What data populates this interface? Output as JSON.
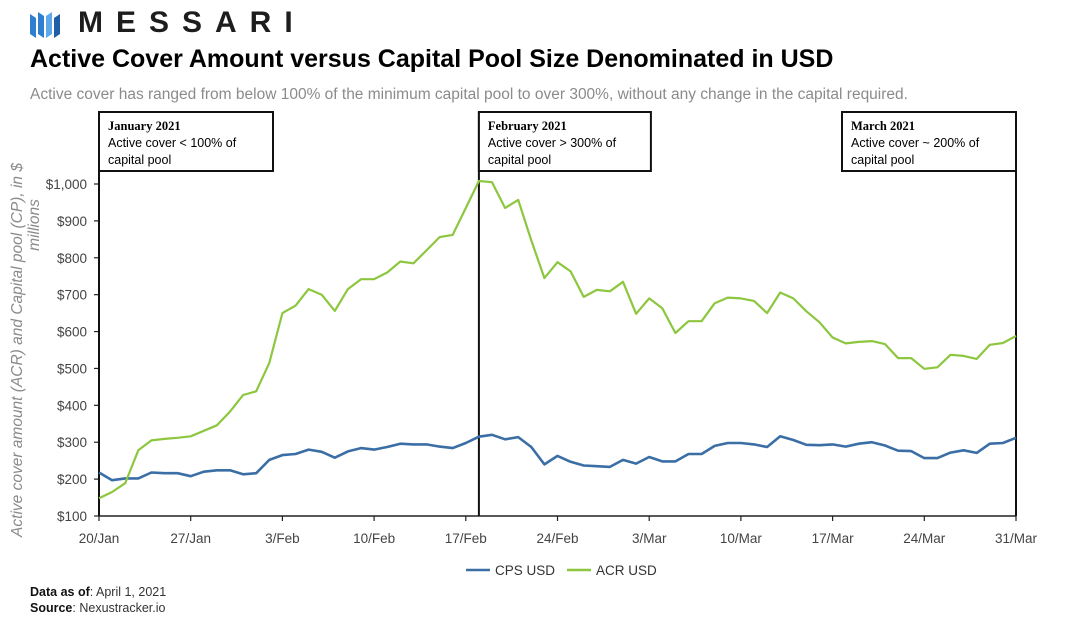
{
  "brand": {
    "name": "MESSARI"
  },
  "header": {
    "title": "Active Cover Amount versus Capital Pool Size Denominated in USD",
    "subtitle": "Active cover has ranged from below 100% of the minimum capital pool to over 300%, without any change in the capital required."
  },
  "footer": {
    "data_as_of_label": "Data as of",
    "data_as_of_value": ": April 1, 2021",
    "source_label": "Source",
    "source_value": ": Nexustracker.io"
  },
  "chart_data": {
    "type": "line",
    "ylabel": "Active cover amount (ACR) and Capital pool (CP), in $ millions",
    "xlabel": "",
    "ylim": [
      100,
      1000
    ],
    "yticks": [
      100,
      200,
      300,
      400,
      500,
      600,
      700,
      800,
      900,
      1000
    ],
    "ytick_labels": [
      "$100",
      "$200",
      "$300",
      "$400",
      "$500",
      "$600",
      "$700",
      "$800",
      "$900",
      "$1,000"
    ],
    "xlim": [
      0,
      70
    ],
    "xticks": [
      0,
      7,
      14,
      21,
      28,
      35,
      42,
      49,
      56,
      63,
      70
    ],
    "xtick_labels": [
      "20/Jan",
      "27/Jan",
      "3/Feb",
      "10/Feb",
      "17/Feb",
      "24/Feb",
      "3/Mar",
      "10/Mar",
      "17/Mar",
      "24/Mar",
      "31/Mar"
    ],
    "legend_position": "bottom-center",
    "series": [
      {
        "name": "CPS USD",
        "color": "#3a6ea5",
        "values": [
          218,
          197,
          202,
          202,
          218,
          216,
          216,
          208,
          220,
          224,
          224,
          213,
          216,
          252,
          265,
          268,
          280,
          274,
          258,
          275,
          284,
          280,
          287,
          296,
          294,
          294,
          288,
          284,
          298,
          315,
          320,
          308,
          314,
          287,
          240,
          263,
          247,
          237,
          235,
          233,
          252,
          242,
          260,
          248,
          248,
          268,
          268,
          290,
          298,
          298,
          294,
          287,
          316,
          306,
          293,
          292,
          294,
          288,
          296,
          300,
          291,
          277,
          276,
          257,
          257,
          272,
          278,
          271,
          296,
          298,
          312
        ]
      },
      {
        "name": "ACR USD",
        "color": "#8dc63f",
        "values": [
          148,
          165,
          189,
          278,
          305,
          309,
          312,
          316,
          331,
          346,
          383,
          428,
          438,
          515,
          650,
          670,
          715,
          700,
          656,
          715,
          742,
          742,
          760,
          790,
          785,
          820,
          856,
          862,
          935,
          1008,
          1005,
          935,
          957,
          847,
          745,
          788,
          763,
          694,
          713,
          709,
          735,
          648,
          690,
          663,
          596,
          628,
          628,
          677,
          692,
          690,
          683,
          650,
          706,
          690,
          655,
          625,
          584,
          568,
          572,
          574,
          566,
          528,
          528,
          499,
          503,
          537,
          534,
          526,
          564,
          569,
          588
        ]
      }
    ],
    "annotations": [
      {
        "title": "January 2021",
        "lines": [
          "Active cover < 100% of",
          "capital pool"
        ],
        "at": 0
      },
      {
        "title": "February 2021",
        "lines": [
          "Active cover > 300% of",
          "capital pool"
        ],
        "at": 29
      },
      {
        "title": "March 2021",
        "lines": [
          "Active cover ~ 200% of",
          "capital pool"
        ],
        "at": 70
      }
    ]
  }
}
